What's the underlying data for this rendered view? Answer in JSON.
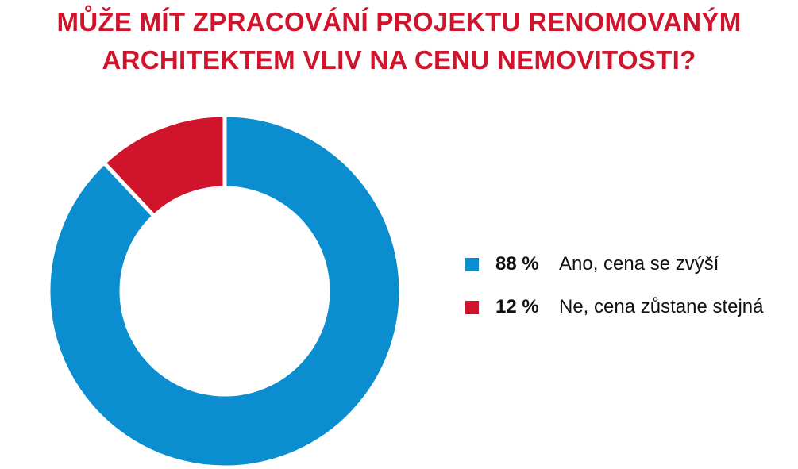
{
  "title": {
    "line1": "MŮŽE MÍT ZPRACOVÁNÍ PROJEKTU RENOMOVANÝM",
    "line2": "ARCHITEKTEM VLIV NA CENU NEMOVITOSTI?"
  },
  "chart_data": {
    "type": "pie",
    "variant": "donut",
    "title": "MŮŽE MÍT ZPRACOVÁNÍ PROJEKTU RENOMOVANÝM ARCHITEKTEM VLIV NA CENU NEMOVITOSTI?",
    "categories": [
      "Ano, cena se zvýší",
      "Ne, cena zůstane stejná"
    ],
    "values": [
      88,
      12
    ],
    "value_labels": [
      "88 %",
      "12 %"
    ],
    "colors": [
      "#0a8ed0",
      "#d0142c"
    ],
    "legend_position": "right"
  }
}
